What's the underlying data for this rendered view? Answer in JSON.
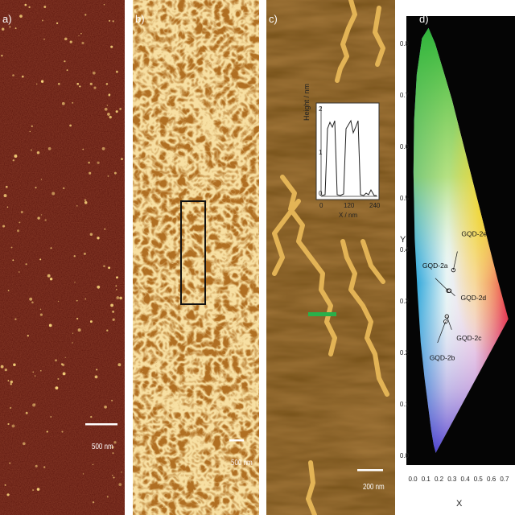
{
  "panels": {
    "a": {
      "label": "a)",
      "scale_bar": "500 nm"
    },
    "b": {
      "label": "b)",
      "scale_bar": "500 nm"
    },
    "c": {
      "label": "c)",
      "scale_bar": "200 nm",
      "inset": {
        "ylabel": "Height / nm",
        "xlabel": "X / nm",
        "x_ticks": [
          "0",
          "120",
          "240"
        ],
        "y_ticks": [
          "0",
          "1",
          "2"
        ]
      }
    },
    "d": {
      "label": "d)"
    }
  },
  "chart_data": {
    "type": "scatter",
    "title": "",
    "xlabel": "X",
    "ylabel": "Y",
    "xlim": [
      0.0,
      0.75
    ],
    "ylim": [
      0.0,
      0.85
    ],
    "x_ticks": [
      "0.0",
      "0.1",
      "0.2",
      "0.3",
      "0.4",
      "0.5",
      "0.6",
      "0.7"
    ],
    "y_ticks": [
      "0.0",
      "0.1",
      "0.2",
      "0.3",
      "0.4",
      "0.5",
      "0.6",
      "0.7",
      "0.8"
    ],
    "series": [
      {
        "name": "GQD-2a",
        "x": 0.27,
        "y": 0.32
      },
      {
        "name": "GQD-2b",
        "x": 0.25,
        "y": 0.26
      },
      {
        "name": "GQD-2c",
        "x": 0.26,
        "y": 0.27
      },
      {
        "name": "GQD-2d",
        "x": 0.28,
        "y": 0.32
      },
      {
        "name": "GQD-2e",
        "x": 0.31,
        "y": 0.36
      }
    ]
  },
  "colors": {
    "afm_dark": "#3a0a05",
    "afm_gold": "#a86a1f",
    "afm_brown": "#5a3510",
    "green_line": "#29b04a"
  }
}
